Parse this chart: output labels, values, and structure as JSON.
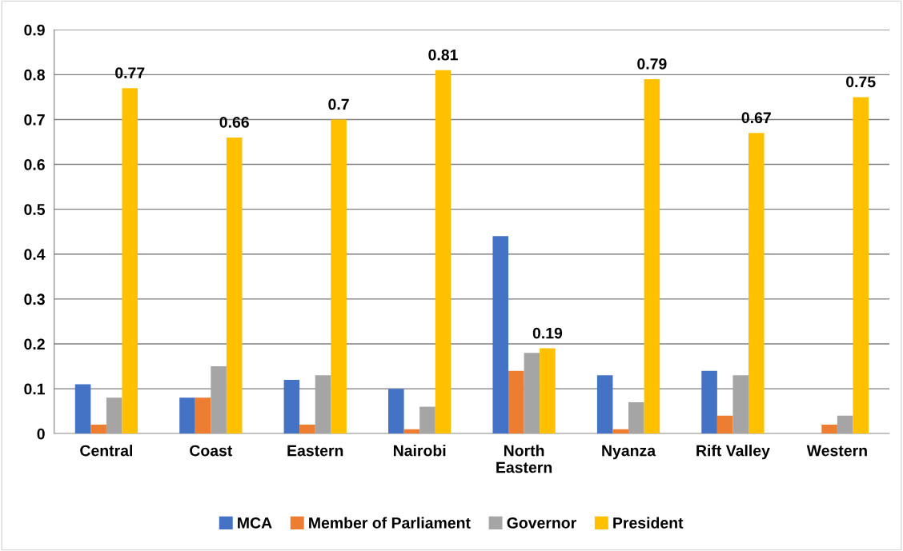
{
  "chart_data": {
    "type": "bar",
    "categories": [
      "Central",
      "Coast",
      "Eastern",
      "Nairobi",
      "North\nEastern",
      "Nyanza",
      "Rift Valley",
      "Western"
    ],
    "series": [
      {
        "name": "MCA",
        "color": "#4472c4",
        "values": [
          0.11,
          0.08,
          0.12,
          0.1,
          0.44,
          0.13,
          0.14,
          0
        ]
      },
      {
        "name": "Member of Parliament",
        "color": "#ed7d31",
        "values": [
          0.02,
          0.08,
          0.02,
          0.01,
          0.14,
          0.01,
          0.04,
          0.02
        ]
      },
      {
        "name": "Governor",
        "color": "#a5a5a5",
        "values": [
          0.08,
          0.15,
          0.13,
          0.06,
          0.18,
          0.07,
          0.13,
          0.04
        ]
      },
      {
        "name": "President",
        "color": "#ffc000",
        "values": [
          0.77,
          0.66,
          0.7,
          0.81,
          0.19,
          0.79,
          0.67,
          0.75
        ],
        "value_labels": [
          "0.77",
          "0.66",
          "0.7",
          "0.81",
          "0.19",
          "0.79",
          "0.67",
          "0.75"
        ]
      }
    ],
    "ylim": [
      0,
      0.9
    ],
    "yticks": [
      {
        "value": 0,
        "label": "0"
      },
      0.1,
      0.2,
      0.3,
      0.4,
      0.5,
      0.6,
      0.7,
      0.8,
      0.9
    ],
    "grid": "y",
    "legend": "bottom"
  }
}
